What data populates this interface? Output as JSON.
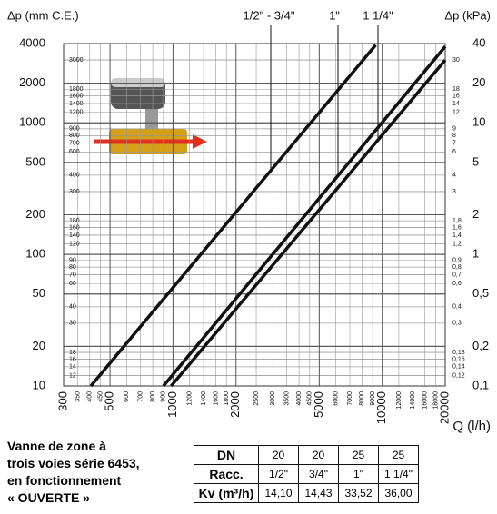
{
  "chart_data": {
    "type": "line",
    "log": true,
    "grid": true,
    "ylabel": "Δp (mm C.E.)",
    "y2label": "Δp (kPa)",
    "xlabel": "Q (l/h)",
    "xlim": [
      300,
      20000
    ],
    "ylim": [
      10,
      4000
    ],
    "y2lim": [
      0.1,
      40
    ],
    "xticks": [
      300,
      500,
      1000,
      2000,
      5000,
      10000,
      20000
    ],
    "xminor": [
      350,
      400,
      450,
      600,
      700,
      800,
      900,
      1200,
      1400,
      1600,
      1800,
      2500,
      3000,
      3500,
      4000,
      4500,
      6000,
      7000,
      8000,
      9000,
      12000,
      14000,
      16000,
      18000
    ],
    "yticks": [
      4000,
      2000,
      1000,
      500,
      200,
      100,
      50,
      20,
      10
    ],
    "yminor": [
      3000,
      1800,
      1600,
      1400,
      1200,
      900,
      800,
      700,
      600,
      400,
      300,
      180,
      160,
      140,
      120,
      90,
      80,
      70,
      60,
      40,
      30,
      18,
      16,
      14,
      12
    ],
    "y2ticks": [
      40,
      20,
      10,
      5,
      2,
      1,
      {
        "value": 0.5,
        "label": "0,5"
      },
      {
        "value": 0.2,
        "label": "0,2"
      },
      {
        "value": 0.1,
        "label": "0,1"
      }
    ],
    "y2minor": [
      30,
      18,
      16,
      14,
      12,
      9,
      8,
      7,
      6,
      4,
      3,
      {
        "value": 1.8,
        "label": "1,8"
      },
      {
        "value": 1.6,
        "label": "1,6"
      },
      {
        "value": 1.4,
        "label": "1,4"
      },
      {
        "value": 1.2,
        "label": "1,2"
      },
      {
        "value": 0.9,
        "label": "0,9"
      },
      {
        "value": 0.8,
        "label": "0,8"
      },
      {
        "value": 0.7,
        "label": "0,7"
      },
      {
        "value": 0.6,
        "label": "0,6"
      },
      {
        "value": 0.4,
        "label": "0,4"
      },
      {
        "value": 0.3,
        "label": "0,3"
      },
      {
        "value": 0.18,
        "label": "0,18"
      },
      {
        "value": 0.16,
        "label": "0,16"
      },
      {
        "value": 0.14,
        "label": "0,14"
      },
      {
        "value": 0.12,
        "label": "0,12"
      }
    ],
    "series": [
      {
        "name": "1/2\" - 3/4\"",
        "color": "#111111",
        "x": [
          405,
          9300
        ],
        "values": [
          10,
          3900
        ]
      },
      {
        "name": "1\"",
        "color": "#111111",
        "x": [
          900,
          20000
        ],
        "values": [
          10,
          3800
        ]
      },
      {
        "name": "1 1/4\"",
        "color": "#111111",
        "x": [
          980,
          20000
        ],
        "values": [
          10,
          3000
        ]
      }
    ]
  },
  "description": [
    "Vanne de zone à",
    "trois voies série 6453,",
    "en fonctionnement",
    "« OUVERTE »"
  ],
  "table": {
    "rows": [
      [
        "DN",
        "20",
        "20",
        "25",
        "25"
      ],
      [
        "Racc.",
        "1/2\"",
        "3/4\"",
        "1\"",
        "1 1/4\""
      ],
      [
        "Kv (m³/h)",
        "14,10",
        "14,43",
        "33,52",
        "36,00"
      ]
    ]
  }
}
